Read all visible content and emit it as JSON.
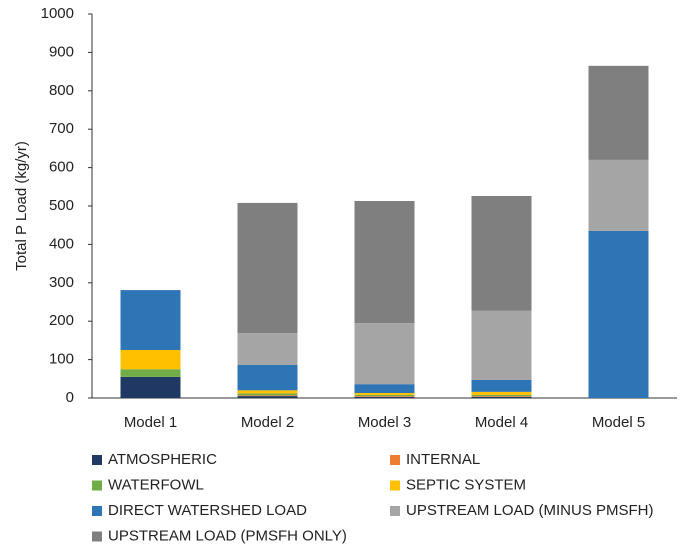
{
  "chart_data": {
    "type": "stacked-bar",
    "y_label": "Total P Load (kg/yr)",
    "categories": [
      "Model 1",
      "Model 2",
      "Model 3",
      "Model 4",
      "Model 5"
    ],
    "series": [
      {
        "name": "ATMOSPHERIC",
        "color": "#1f3864",
        "values": [
          55,
          5,
          3,
          3,
          0
        ]
      },
      {
        "name": "INTERNAL",
        "color": "#ed7d31",
        "values": [
          0,
          2,
          2,
          2,
          0
        ]
      },
      {
        "name": "WATERFOWL",
        "color": "#70ad47",
        "values": [
          20,
          5,
          3,
          3,
          0
        ]
      },
      {
        "name": "SEPTIC SYSTEM",
        "color": "#ffc000",
        "values": [
          50,
          8,
          5,
          8,
          0
        ]
      },
      {
        "name": "DIRECT WATERSHED LOAD",
        "color": "#2e75b6",
        "values": [
          156,
          66,
          23,
          31,
          435
        ]
      },
      {
        "name": "UPSTREAM LOAD (MINUS PMSFH)",
        "color": "#a5a5a5",
        "values": [
          0,
          83,
          159,
          180,
          185
        ]
      },
      {
        "name": "UPSTREAM LOAD (PMSFH ONLY)",
        "color": "#7f7f7f",
        "values": [
          0,
          339,
          318,
          299,
          245
        ]
      }
    ],
    "ylim": [
      0,
      1000
    ],
    "yticks": [
      0,
      100,
      200,
      300,
      400,
      500,
      600,
      700,
      800,
      900,
      1000
    ],
    "grid": false
  }
}
